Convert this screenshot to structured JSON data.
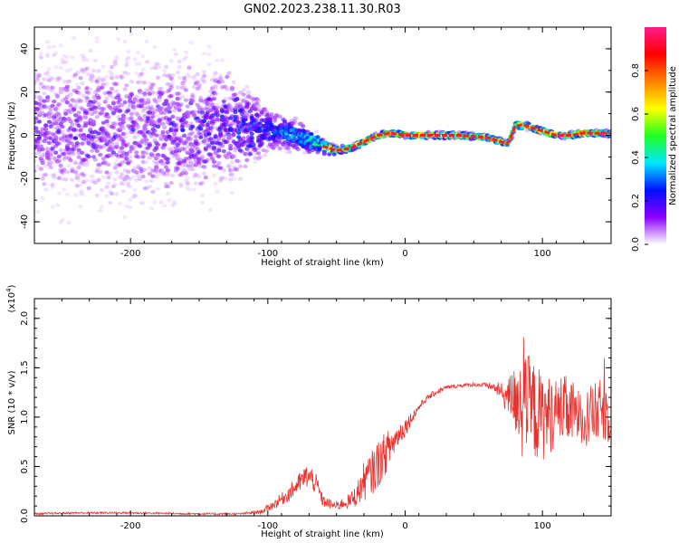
{
  "title": "GN02.2023.238.11.30.R03",
  "colors": {
    "snr_line": "#e8322e",
    "axis": "#000000"
  },
  "chart_data": [
    {
      "type": "heatmap",
      "xlabel": "Height of straight line (km)",
      "ylabel": "Frequency (Hz)",
      "xlim": [
        -270,
        150
      ],
      "ylim": [
        -50,
        50
      ],
      "x_ticks": [
        -200,
        -100,
        0,
        100
      ],
      "y_ticks": [
        -40,
        -20,
        0,
        20,
        40
      ],
      "x_tick_labels": [
        "-200",
        "-100",
        "0",
        "100"
      ],
      "y_tick_labels": [
        "-40",
        "-20",
        "0",
        "20",
        "40"
      ],
      "colorbar": {
        "label": "Normalized spectral amplitude",
        "range": [
          0,
          1
        ],
        "ticks": [
          0.0,
          0.2,
          0.4,
          0.6,
          0.8
        ],
        "tick_labels": [
          "0.0",
          "0.2",
          "0.4",
          "0.6",
          "0.8"
        ],
        "colormap": [
          "#ffffff",
          "#8a00ff",
          "#0010ff",
          "#00e8ff",
          "#20ff20",
          "#ffff00",
          "#ff8000",
          "#ff0000",
          "#ff1a8c"
        ]
      },
      "ridge": {
        "x": [
          -270,
          -200,
          -130,
          -100,
          -80,
          -60,
          -50,
          -40,
          -30,
          -20,
          -10,
          0,
          20,
          40,
          60,
          70,
          75,
          80,
          85,
          90,
          100,
          110,
          120,
          130,
          150
        ],
        "freq_hz": [
          3,
          3,
          4,
          3,
          0,
          -5,
          -7,
          -6,
          -3,
          0,
          1,
          0,
          0,
          0,
          -1,
          -3,
          -4,
          4,
          5,
          4,
          2,
          0,
          0,
          1,
          1
        ],
        "peak_amplitude": [
          0.15,
          0.15,
          0.2,
          0.3,
          0.4,
          0.6,
          0.85,
          0.9,
          0.9,
          0.95,
          0.95,
          0.95,
          0.95,
          0.95,
          0.95,
          0.9,
          0.8,
          0.85,
          0.9,
          0.95,
          0.95,
          0.95,
          0.95,
          0.95,
          0.95
        ],
        "scatter_spread_hz": [
          50,
          50,
          40,
          15,
          10,
          6,
          3,
          2,
          2,
          2,
          2,
          2,
          2,
          2,
          2,
          2,
          2,
          3,
          3,
          2,
          2,
          2,
          2,
          2,
          2
        ]
      }
    },
    {
      "type": "line",
      "xlabel": "Height of straight line (km)",
      "ylabel": "SNR (10 * v/v)",
      "y_scale_label": "(x10",
      "y_scale_exp": "4",
      "y_scale_close": ")",
      "xlim": [
        -270,
        150
      ],
      "ylim": [
        0,
        2.2
      ],
      "x_ticks": [
        -200,
        -100,
        0,
        100
      ],
      "y_ticks": [
        0.0,
        0.5,
        1.0,
        1.5,
        2.0
      ],
      "x_tick_labels": [
        "-200",
        "-100",
        "0",
        "100"
      ],
      "y_tick_labels": [
        "0.0",
        "0.5",
        "1.0",
        "1.5",
        "2.0"
      ],
      "envelope": {
        "x": [
          -270,
          -240,
          -200,
          -150,
          -120,
          -105,
          -95,
          -85,
          -78,
          -72,
          -68,
          -64,
          -60,
          -55,
          -50,
          -45,
          -40,
          -35,
          -30,
          -25,
          -20,
          -15,
          -10,
          -5,
          0,
          5,
          10,
          15,
          20,
          25,
          30,
          40,
          50,
          60,
          65,
          70,
          75,
          80,
          85,
          90,
          95,
          100,
          105,
          110,
          115,
          120,
          125,
          130,
          135,
          140,
          145,
          150
        ],
        "y": [
          0.02,
          0.03,
          0.03,
          0.02,
          0.02,
          0.04,
          0.12,
          0.22,
          0.32,
          0.4,
          0.38,
          0.3,
          0.15,
          0.12,
          0.1,
          0.13,
          0.15,
          0.22,
          0.35,
          0.42,
          0.52,
          0.62,
          0.72,
          0.82,
          0.9,
          1.0,
          1.1,
          1.18,
          1.23,
          1.27,
          1.3,
          1.32,
          1.33,
          1.32,
          1.3,
          1.25,
          1.2,
          1.18,
          1.12,
          1.1,
          1.05,
          1.0,
          1.02,
          1.05,
          1.08,
          1.05,
          1.02,
          1.0,
          1.02,
          1.05,
          1.08,
          1.0
        ],
        "noise": [
          0.01,
          0.01,
          0.01,
          0.01,
          0.01,
          0.02,
          0.05,
          0.08,
          0.1,
          0.12,
          0.12,
          0.1,
          0.06,
          0.05,
          0.05,
          0.06,
          0.08,
          0.12,
          0.2,
          0.22,
          0.25,
          0.22,
          0.18,
          0.12,
          0.1,
          0.06,
          0.04,
          0.03,
          0.03,
          0.03,
          0.02,
          0.02,
          0.02,
          0.03,
          0.05,
          0.1,
          0.2,
          0.35,
          0.45,
          0.55,
          0.5,
          0.45,
          0.4,
          0.35,
          0.35,
          0.35,
          0.3,
          0.3,
          0.3,
          0.32,
          0.32,
          0.3
        ]
      }
    }
  ]
}
